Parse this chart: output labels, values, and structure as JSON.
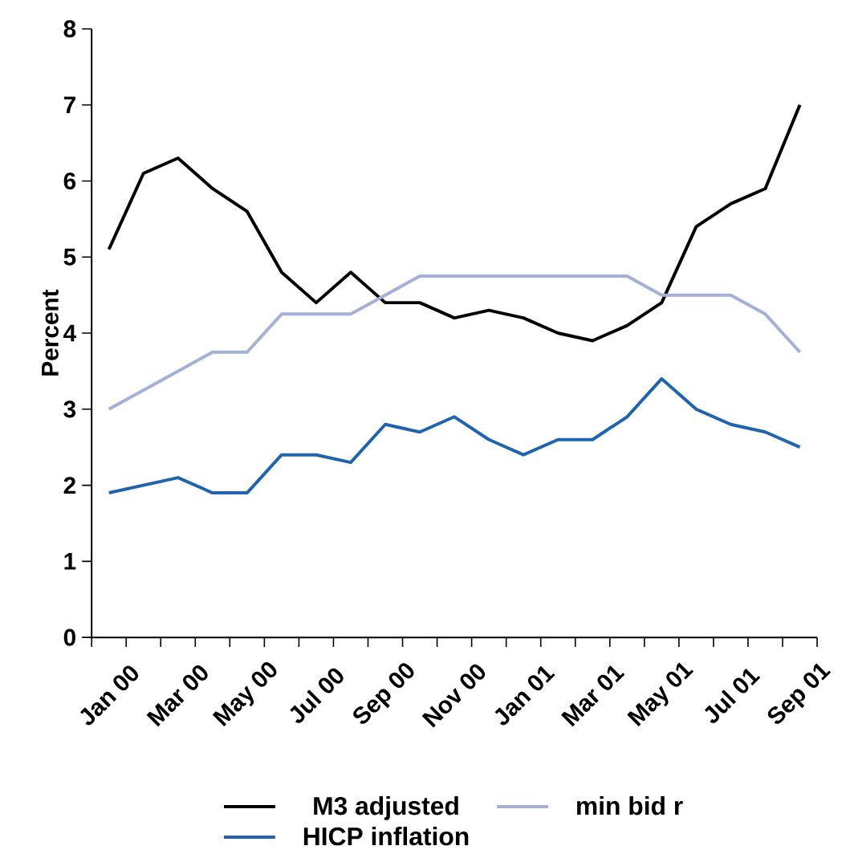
{
  "chart_data": {
    "type": "line",
    "ylabel": "Percent",
    "categories": [
      "Jan 00",
      null,
      "Mar 00",
      null,
      "May 00",
      null,
      "Jul 00",
      null,
      "Sep 00",
      null,
      "Nov 00",
      null,
      "Jan 01",
      null,
      "Mar 01",
      null,
      "May 01",
      null,
      "Jul 01",
      null,
      "Sep 01"
    ],
    "series": [
      {
        "name": "M3 adjusted",
        "color": "#000000",
        "values": [
          5.1,
          6.1,
          6.3,
          5.9,
          5.6,
          4.8,
          4.4,
          4.8,
          4.4,
          4.4,
          4.2,
          4.3,
          4.2,
          4.0,
          3.9,
          4.1,
          4.4,
          5.4,
          5.7,
          5.9,
          7.0
        ]
      },
      {
        "name": "min bid r",
        "color": "#a3b0d8",
        "values": [
          3.0,
          3.25,
          3.5,
          3.75,
          3.75,
          4.25,
          4.25,
          4.25,
          4.5,
          4.75,
          4.75,
          4.75,
          4.75,
          4.75,
          4.75,
          4.75,
          4.5,
          4.5,
          4.5,
          4.25,
          3.75
        ]
      },
      {
        "name": "HICP inflation",
        "color": "#1f64ad",
        "values": [
          1.9,
          2.0,
          2.1,
          1.9,
          1.9,
          2.4,
          2.4,
          2.3,
          2.8,
          2.7,
          2.9,
          2.6,
          2.4,
          2.6,
          2.6,
          2.9,
          3.4,
          3.0,
          2.8,
          2.7,
          2.5
        ]
      }
    ],
    "ylim": [
      0,
      8
    ],
    "yticks": [
      0,
      1,
      2,
      3,
      4,
      5,
      6,
      7,
      8
    ],
    "grid": false,
    "legend": "bottom",
    "marker": "none",
    "line_style": "solid"
  }
}
